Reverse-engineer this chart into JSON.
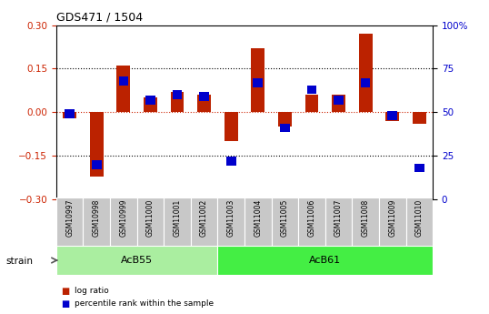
{
  "title": "GDS471 / 1504",
  "samples": [
    "GSM10997",
    "GSM10998",
    "GSM10999",
    "GSM11000",
    "GSM11001",
    "GSM11002",
    "GSM11003",
    "GSM11004",
    "GSM11005",
    "GSM11006",
    "GSM11007",
    "GSM11008",
    "GSM11009",
    "GSM11010"
  ],
  "log_ratio": [
    -0.02,
    -0.22,
    0.16,
    0.05,
    0.07,
    0.06,
    -0.1,
    0.22,
    -0.05,
    0.06,
    0.06,
    0.27,
    -0.03,
    -0.04
  ],
  "percentile_rank": [
    49,
    20,
    68,
    57,
    60,
    59,
    22,
    67,
    41,
    63,
    57,
    67,
    48,
    18
  ],
  "groups": [
    {
      "label": "AcB55",
      "start": 0,
      "end": 6
    },
    {
      "label": "AcB61",
      "start": 6,
      "end": 14
    }
  ],
  "ylim_left": [
    -0.3,
    0.3
  ],
  "ylim_right": [
    0,
    100
  ],
  "yticks_left": [
    -0.3,
    -0.15,
    0.0,
    0.15,
    0.3
  ],
  "yticks_right": [
    0,
    25,
    50,
    75,
    100
  ],
  "hlines_dotted": [
    -0.15,
    0.15
  ],
  "hline_zero_color": "#cc2200",
  "bar_color": "#bb2200",
  "dot_color": "#0000cc",
  "bar_width": 0.5,
  "dot_size": 50,
  "group_row_color1": "#c8c8c8",
  "group_color_acb55": "#aaeea0",
  "group_color_acb61": "#44ee44",
  "legend_items": [
    "log ratio",
    "percentile rank within the sample"
  ]
}
